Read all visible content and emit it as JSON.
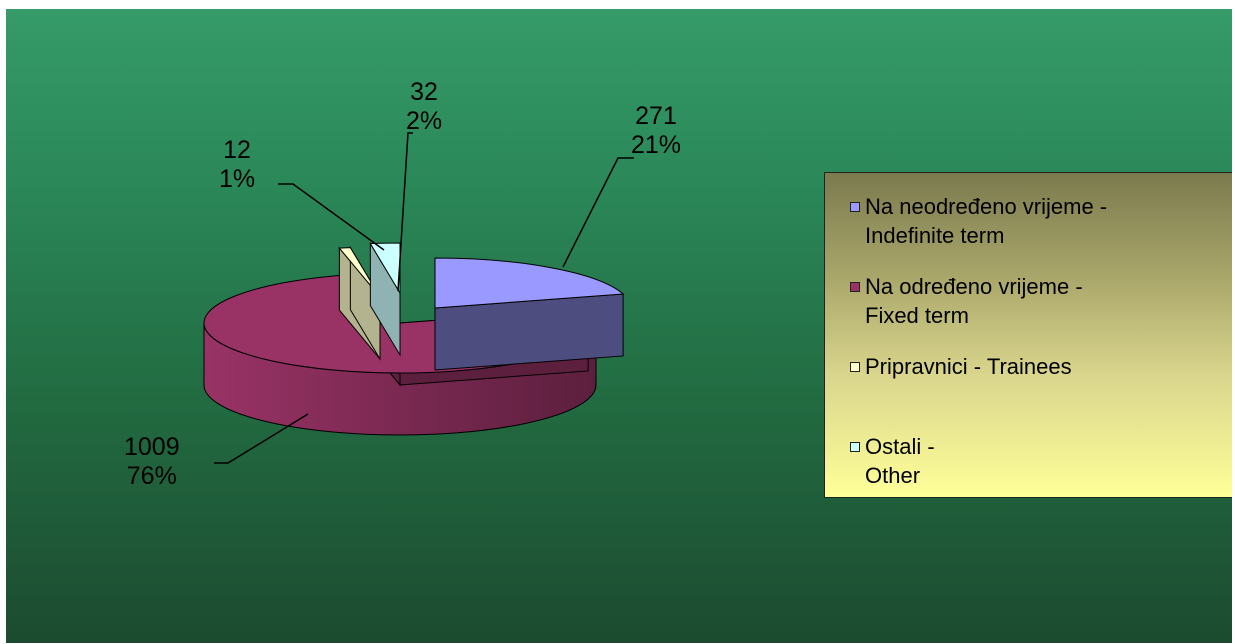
{
  "chart_data": {
    "type": "pie",
    "title": "",
    "three_d": true,
    "legend_position": "right",
    "slices": [
      {
        "name": "Na neodređeno vrijeme - Indefinite term",
        "legend_lines": [
          "Na neodređeno vrijeme -",
          "Indefinite term"
        ],
        "value": 271,
        "percent": "21%",
        "color": "#9999ff",
        "side_color": "#4d4d80"
      },
      {
        "name": "Na određeno vrijeme - Fixed term",
        "legend_lines": [
          "Na određeno vrijeme -",
          "Fixed term"
        ],
        "value": 1009,
        "percent": "76%",
        "color": "#993366",
        "side_color": "#5c1f3d"
      },
      {
        "name": "Pripravnici - Trainees",
        "legend_lines": [
          "Pripravnici - Trainees"
        ],
        "value": 12,
        "percent": "1%",
        "color": "#ffffcc",
        "side_color": "#b3b38f"
      },
      {
        "name": "Ostali - Other",
        "legend_lines": [
          "Ostali -",
          "Other"
        ],
        "value": 32,
        "percent": "2%",
        "color": "#ccffff",
        "side_color": "#8fb3b3"
      }
    ]
  }
}
